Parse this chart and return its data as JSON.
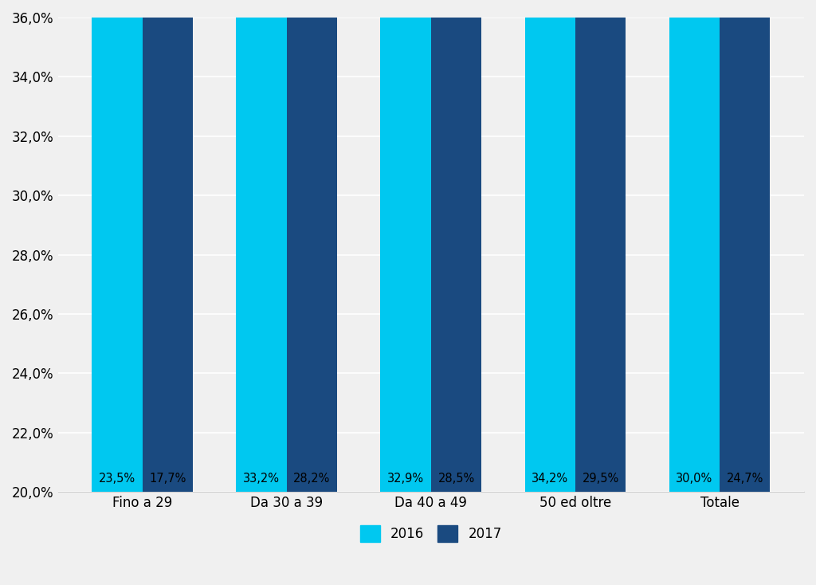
{
  "categories": [
    "Fino a 29",
    "Da 30 a 39",
    "Da 40 a 49",
    "50 ed oltre",
    "Totale"
  ],
  "values_2016": [
    23.5,
    33.2,
    32.9,
    34.2,
    30.0
  ],
  "values_2017": [
    17.7,
    28.2,
    28.5,
    29.5,
    24.7
  ],
  "color_2016": "#00C8F0",
  "color_2017": "#1A4A80",
  "label_2016": "2016",
  "label_2017": "2017",
  "ylim_min": 20.0,
  "ylim_max": 36.0,
  "yticks": [
    20.0,
    22.0,
    24.0,
    26.0,
    28.0,
    30.0,
    32.0,
    34.0,
    36.0
  ],
  "bar_width": 0.35,
  "background_color": "#f0f0f0",
  "label_fontsize": 10.5,
  "tick_fontsize": 12,
  "legend_fontsize": 12
}
